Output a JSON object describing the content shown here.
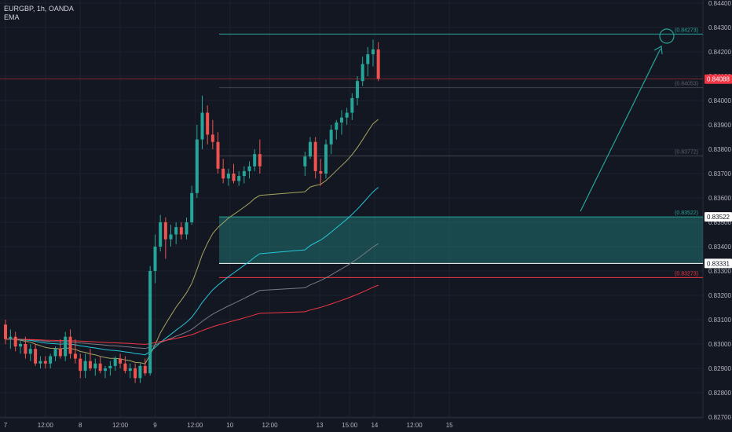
{
  "header": {
    "symbol_line": "EURGBP, 1h, OANDA",
    "indicator": "EMA"
  },
  "chart_data": {
    "type": "candlestick",
    "y_ticks": [
      "0.84400",
      "0.84300",
      "0.84200",
      "0.84100",
      "0.84000",
      "0.83900",
      "0.83800",
      "0.83700",
      "0.83600",
      "0.83500",
      "0.83400",
      "0.83300",
      "0.83200",
      "0.83100",
      "0.83000",
      "0.82900",
      "0.82800",
      "0.82700"
    ],
    "x_ticks": [
      {
        "label": "7",
        "hour": 0
      },
      {
        "label": "12:00",
        "hour": 8
      },
      {
        "label": "8",
        "hour": 15
      },
      {
        "label": "12:00",
        "hour": 23
      },
      {
        "label": "9",
        "hour": 30
      },
      {
        "label": "12:00",
        "hour": 38
      },
      {
        "label": "10",
        "hour": 45
      },
      {
        "label": "12:00",
        "hour": 53
      },
      {
        "label": "13",
        "hour": 63
      },
      {
        "label": "15:00",
        "hour": 69
      },
      {
        "label": "14",
        "hour": 74
      },
      {
        "label": "12:00",
        "hour": 82
      },
      {
        "label": "15",
        "hour": 89
      }
    ],
    "ylim": [
      0.827,
      0.8445
    ],
    "candles": [
      [
        0.8308,
        0.831,
        0.83,
        0.8302
      ],
      [
        0.8302,
        0.8306,
        0.8298,
        0.8303
      ],
      [
        0.8303,
        0.8305,
        0.8297,
        0.8299
      ],
      [
        0.8299,
        0.8302,
        0.8296,
        0.83
      ],
      [
        0.83,
        0.8303,
        0.8294,
        0.8296
      ],
      [
        0.8296,
        0.83,
        0.8293,
        0.8298
      ],
      [
        0.8298,
        0.83,
        0.8291,
        0.8292
      ],
      [
        0.8292,
        0.8295,
        0.829,
        0.8293
      ],
      [
        0.8293,
        0.8295,
        0.829,
        0.8292
      ],
      [
        0.8292,
        0.8296,
        0.829,
        0.8295
      ],
      [
        0.8295,
        0.8299,
        0.8293,
        0.8298
      ],
      [
        0.8298,
        0.8302,
        0.8294,
        0.8295
      ],
      [
        0.8295,
        0.8305,
        0.8293,
        0.8303
      ],
      [
        0.8303,
        0.8306,
        0.8294,
        0.8296
      ],
      [
        0.8296,
        0.8302,
        0.8292,
        0.8294
      ],
      [
        0.8294,
        0.8296,
        0.8286,
        0.8289
      ],
      [
        0.8289,
        0.8296,
        0.8286,
        0.8293
      ],
      [
        0.8293,
        0.8298,
        0.8289,
        0.829
      ],
      [
        0.829,
        0.8294,
        0.8287,
        0.8292
      ],
      [
        0.8292,
        0.8295,
        0.8288,
        0.8289
      ],
      [
        0.8289,
        0.8291,
        0.8286,
        0.829
      ],
      [
        0.829,
        0.8293,
        0.8287,
        0.8291
      ],
      [
        0.8291,
        0.8295,
        0.8289,
        0.8294
      ],
      [
        0.8294,
        0.8296,
        0.829,
        0.8292
      ],
      [
        0.8292,
        0.8295,
        0.8288,
        0.8289
      ],
      [
        0.8289,
        0.8292,
        0.8286,
        0.829
      ],
      [
        0.829,
        0.8292,
        0.8284,
        0.8286
      ],
      [
        0.8286,
        0.8292,
        0.8284,
        0.8291
      ],
      [
        0.8291,
        0.8294,
        0.8287,
        0.8288
      ],
      [
        0.8288,
        0.8332,
        0.8287,
        0.833
      ],
      [
        0.833,
        0.8345,
        0.8325,
        0.834
      ],
      [
        0.834,
        0.8353,
        0.8338,
        0.835
      ],
      [
        0.835,
        0.8352,
        0.8335,
        0.8343
      ],
      [
        0.8343,
        0.8349,
        0.834,
        0.8345
      ],
      [
        0.8345,
        0.835,
        0.8341,
        0.8348
      ],
      [
        0.8348,
        0.835,
        0.8343,
        0.8345
      ],
      [
        0.8345,
        0.8352,
        0.8343,
        0.835
      ],
      [
        0.835,
        0.8365,
        0.8349,
        0.8362
      ],
      [
        0.8362,
        0.839,
        0.836,
        0.8384
      ],
      [
        0.8384,
        0.8402,
        0.838,
        0.8395
      ],
      [
        0.8395,
        0.8398,
        0.8382,
        0.8386
      ],
      [
        0.8386,
        0.8392,
        0.838,
        0.8383
      ],
      [
        0.8383,
        0.8387,
        0.837,
        0.8372
      ],
      [
        0.8372,
        0.8376,
        0.8366,
        0.8368
      ],
      [
        0.8368,
        0.8372,
        0.8365,
        0.837
      ],
      [
        0.837,
        0.8374,
        0.8366,
        0.8367
      ],
      [
        0.8367,
        0.8371,
        0.8365,
        0.8369
      ],
      [
        0.8369,
        0.8373,
        0.8366,
        0.8371
      ],
      [
        0.8371,
        0.8375,
        0.8368,
        0.8373
      ],
      [
        0.8373,
        0.838,
        0.8371,
        0.8378
      ],
      [
        0.8378,
        0.8384,
        0.837,
        0.8373
      ],
      [
        0.8373,
        0.8379,
        0.8369,
        0.8377
      ],
      [
        0.8377,
        0.8385,
        0.8376,
        0.8383
      ],
      [
        0.8383,
        0.8385,
        0.8368,
        0.8371
      ],
      [
        0.8371,
        0.8376,
        0.8365,
        0.837
      ],
      [
        0.837,
        0.8384,
        0.8368,
        0.8382
      ],
      [
        0.8382,
        0.839,
        0.8378,
        0.8388
      ],
      [
        0.8388,
        0.8392,
        0.8384,
        0.8391
      ],
      [
        0.8391,
        0.8396,
        0.8386,
        0.8393
      ],
      [
        0.8393,
        0.8397,
        0.839,
        0.8395
      ],
      [
        0.8395,
        0.8403,
        0.8392,
        0.8401
      ],
      [
        0.8401,
        0.841,
        0.8398,
        0.8408
      ],
      [
        0.8408,
        0.8418,
        0.8406,
        0.8415
      ],
      [
        0.8415,
        0.8422,
        0.841,
        0.8419
      ],
      [
        0.8419,
        0.8425,
        0.8414,
        0.8421
      ],
      [
        0.8421,
        0.8424,
        0.8408,
        0.8409
      ]
    ],
    "ema_series": [
      {
        "name": "EMA 20",
        "color": "#a5a560"
      },
      {
        "name": "EMA 50",
        "color": "#26c6da"
      },
      {
        "name": "EMA 100",
        "color": "#787b86"
      },
      {
        "name": "EMA 200",
        "color": "#f23645"
      }
    ],
    "levels": [
      {
        "price": 0.84273,
        "label": "(0.84273)",
        "color": "#26a69a",
        "kind": "target"
      },
      {
        "price": 0.84053,
        "label": "(0.84053)",
        "color": "#5d606b",
        "kind": "level"
      },
      {
        "price": 0.83772,
        "label": "(0.83772)",
        "color": "#5d606b",
        "kind": "level"
      },
      {
        "price": 0.83522,
        "label": "(0.83522)",
        "color": "#26a69a",
        "kind": "zone-top"
      },
      {
        "price": 0.83273,
        "label": "(0.83273)",
        "color": "#f23645",
        "kind": "stop"
      }
    ],
    "zone": {
      "top": 0.83522,
      "bottom": 0.83331,
      "color": "#26a69a"
    },
    "price_labels": [
      {
        "price": 0.84088,
        "text": "0.84088",
        "bg": "#f23645",
        "fg": "#ffffff"
      },
      {
        "price": 0.83522,
        "text": "0.83522",
        "bg": "#ffffff",
        "fg": "#131722"
      },
      {
        "price": 0.83331,
        "text": "0.83331",
        "bg": "#ffffff",
        "fg": "#131722"
      }
    ],
    "colors": {
      "bull": "#26a69a",
      "bear": "#ef5350",
      "grid": "#1e222d",
      "axis_text": "#b2b5be",
      "arrow": "#26a69a"
    }
  }
}
